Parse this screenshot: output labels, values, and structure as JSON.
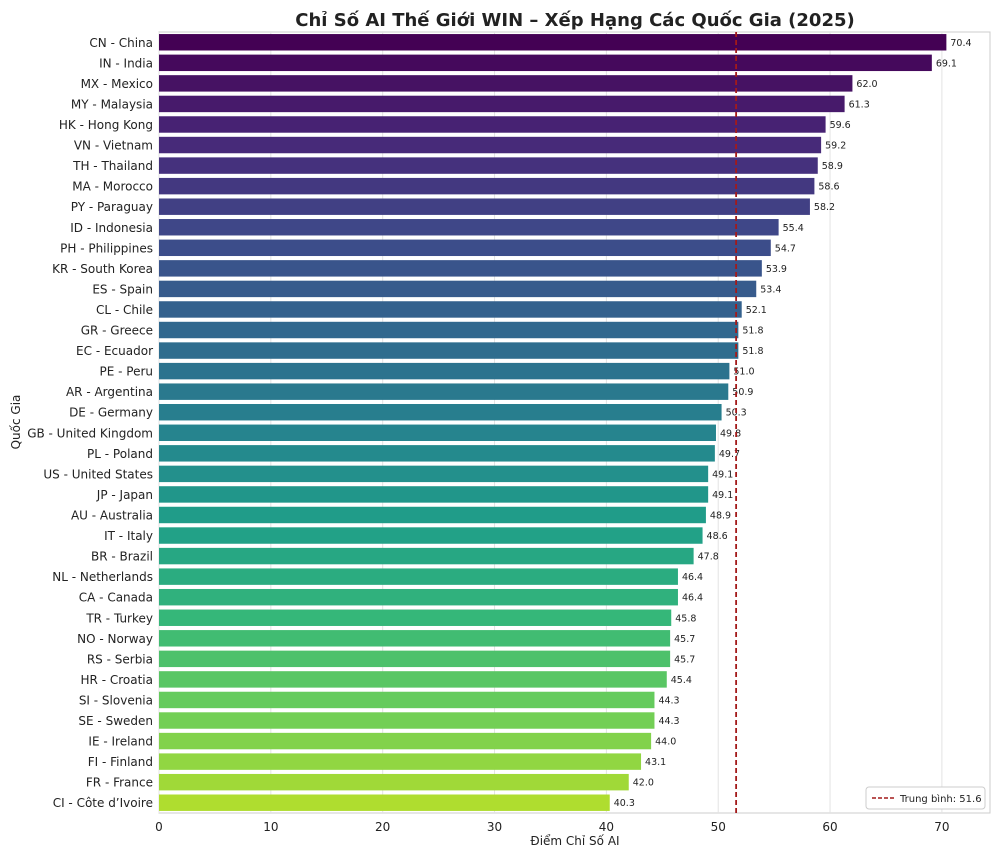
{
  "chart_data": {
    "type": "bar",
    "orientation": "horizontal",
    "title": "Chỉ Số AI Thế Giới WIN – Xếp Hạng Các Quốc Gia (2025)",
    "xlabel": "Điểm Chỉ Số AI",
    "ylabel": "Quốc Gia",
    "xlim": [
      0,
      74.3
    ],
    "xticks": [
      0,
      10,
      20,
      30,
      40,
      50,
      60,
      70
    ],
    "grid": true,
    "palette": "viridis",
    "categories": [
      "CN - China",
      "IN - India",
      "MX - Mexico",
      "MY - Malaysia",
      "HK - Hong Kong",
      "VN - Vietnam",
      "TH - Thailand",
      "MA - Morocco",
      "PY - Paraguay",
      "ID - Indonesia",
      "PH - Philippines",
      "KR - South Korea",
      "ES - Spain",
      "CL - Chile",
      "GR - Greece",
      "EC - Ecuador",
      "PE - Peru",
      "AR - Argentina",
      "DE - Germany",
      "GB - United Kingdom",
      "PL - Poland",
      "US - United States",
      "JP - Japan",
      "AU - Australia",
      "IT - Italy",
      "BR - Brazil",
      "NL - Netherlands",
      "CA - Canada",
      "TR - Turkey",
      "NO - Norway",
      "RS - Serbia",
      "HR - Croatia",
      "SI - Slovenia",
      "SE - Sweden",
      "IE - Ireland",
      "FI - Finland",
      "FR - France",
      "CI - Côte d’Ivoire"
    ],
    "values": [
      70.4,
      69.1,
      62.0,
      61.3,
      59.6,
      59.2,
      58.9,
      58.6,
      58.2,
      55.4,
      54.7,
      53.9,
      53.4,
      52.1,
      51.8,
      51.8,
      51.0,
      50.9,
      50.3,
      49.8,
      49.7,
      49.1,
      49.1,
      48.9,
      48.6,
      47.8,
      46.4,
      46.4,
      45.8,
      45.7,
      45.7,
      45.4,
      44.3,
      44.3,
      44.0,
      43.1,
      42.0,
      40.3
    ],
    "mean_line": {
      "value": 51.6,
      "label": "Trung bình: 51.6",
      "color": "#a31a1a"
    },
    "legend_position": "bottom-right"
  }
}
